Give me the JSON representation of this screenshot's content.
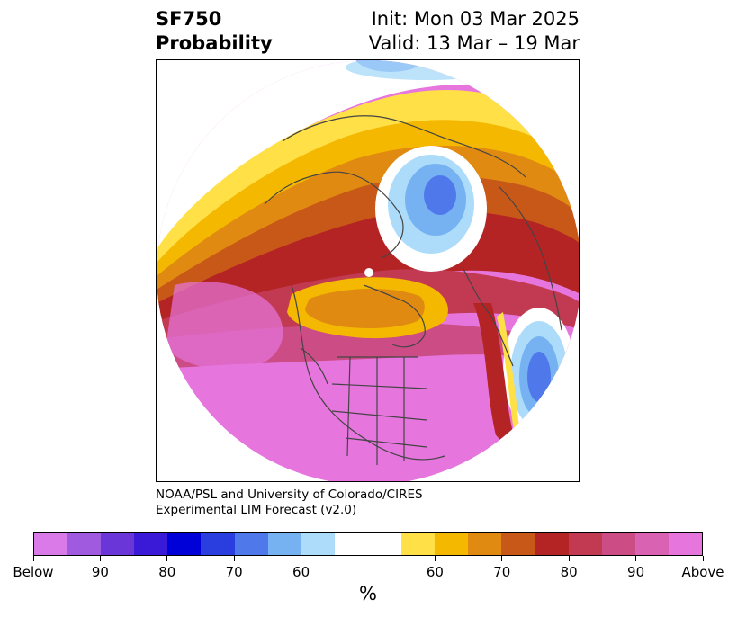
{
  "header": {
    "variable": "SF750",
    "product": "Probability",
    "init": "Init: Mon 03 Mar 2025",
    "valid": "Valid: 13 Mar – 19 Mar"
  },
  "credit": {
    "line1": "NOAA/PSL and University of Colorado/CIRES",
    "line2": "Experimental LIM Forecast (v2.0)"
  },
  "colorbar": {
    "colors": [
      "#d97ae8",
      "#a05ae0",
      "#6a36d8",
      "#3a1ad6",
      "#0000d8",
      "#2a3ee0",
      "#4f78ea",
      "#76b2f2",
      "#acdcfa",
      "#ffffff",
      "#ffe046",
      "#f4b800",
      "#e08a12",
      "#c85818",
      "#b42424",
      "#c23a52",
      "#cc4c86",
      "#d962b2",
      "#e676de"
    ],
    "tick_labels": [
      "Below",
      "90",
      "80",
      "70",
      "60",
      "60",
      "70",
      "80",
      "90",
      "Above"
    ],
    "unit": "%"
  },
  "legend_meaning": {
    "left": "Below",
    "right": "Above"
  }
}
